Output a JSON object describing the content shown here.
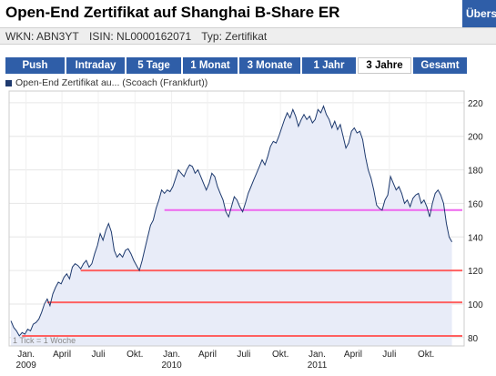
{
  "header": {
    "title": "Open-End Zertifikat auf Shanghai B-Share ER",
    "overview_button": "Übers"
  },
  "info": {
    "wkn": "WKN: ABN3YT",
    "isin": "ISIN: NL0000162071",
    "type": "Typ: Zertifikat"
  },
  "tabs": [
    {
      "label": "Push",
      "active": false
    },
    {
      "label": "Intraday",
      "active": false
    },
    {
      "label": "5 Tage",
      "active": false
    },
    {
      "label": "1 Monat",
      "active": false
    },
    {
      "label": "3 Monate",
      "active": false
    },
    {
      "label": "1 Jahr",
      "active": false
    },
    {
      "label": "3 Jahre",
      "active": true
    },
    {
      "label": "Gesamt",
      "active": false
    }
  ],
  "legend": {
    "label": "Open-End Zertifikat au... (Scoach (Frankfurt))",
    "color": "#1e3a6e"
  },
  "colors": {
    "accent": "#2f5ea8",
    "series_line": "#1e3a6e",
    "series_fill": "#e8ecf8",
    "support_line": "#ff6060",
    "resistance_line": "#ee66ee"
  },
  "chart_data": {
    "type": "area",
    "note": "1 Tick = 1 Woche",
    "ylim": [
      75,
      227
    ],
    "yticks": [
      80,
      100,
      120,
      140,
      160,
      180,
      200,
      220
    ],
    "xlim": [
      "2008-11-24",
      "2011-12-31"
    ],
    "x_tick_labels": [
      {
        "date": "2009-01-01",
        "label": "Jan.",
        "year": "2009"
      },
      {
        "date": "2009-04-01",
        "label": "April",
        "year": ""
      },
      {
        "date": "2009-07-01",
        "label": "Juli",
        "year": ""
      },
      {
        "date": "2009-10-01",
        "label": "Okt.",
        "year": ""
      },
      {
        "date": "2010-01-01",
        "label": "Jan.",
        "year": "2010"
      },
      {
        "date": "2010-04-01",
        "label": "April",
        "year": ""
      },
      {
        "date": "2010-07-01",
        "label": "Juli",
        "year": ""
      },
      {
        "date": "2010-10-01",
        "label": "Okt.",
        "year": ""
      },
      {
        "date": "2011-01-01",
        "label": "Jan.",
        "year": "2011"
      },
      {
        "date": "2011-04-01",
        "label": "April",
        "year": ""
      },
      {
        "date": "2011-07-01",
        "label": "Juli",
        "year": ""
      },
      {
        "date": "2011-10-01",
        "label": "Okt.",
        "year": ""
      }
    ],
    "series": [
      {
        "color": "#1e3a6e",
        "points": [
          [
            "2008-11-24",
            90
          ],
          [
            "2008-12-01",
            86
          ],
          [
            "2008-12-08",
            84
          ],
          [
            "2008-12-15",
            81
          ],
          [
            "2008-12-22",
            83
          ],
          [
            "2008-12-29",
            82
          ],
          [
            "2009-01-05",
            85
          ],
          [
            "2009-01-12",
            84
          ],
          [
            "2009-01-19",
            88
          ],
          [
            "2009-01-26",
            89
          ],
          [
            "2009-02-02",
            91
          ],
          [
            "2009-02-09",
            95
          ],
          [
            "2009-02-16",
            100
          ],
          [
            "2009-02-23",
            103
          ],
          [
            "2009-03-02",
            99
          ],
          [
            "2009-03-09",
            106
          ],
          [
            "2009-03-16",
            110
          ],
          [
            "2009-03-23",
            113
          ],
          [
            "2009-03-30",
            112
          ],
          [
            "2009-04-06",
            116
          ],
          [
            "2009-04-13",
            118
          ],
          [
            "2009-04-20",
            115
          ],
          [
            "2009-04-27",
            122
          ],
          [
            "2009-05-04",
            124
          ],
          [
            "2009-05-11",
            123
          ],
          [
            "2009-05-18",
            121
          ],
          [
            "2009-05-25",
            124
          ],
          [
            "2009-06-01",
            126
          ],
          [
            "2009-06-08",
            122
          ],
          [
            "2009-06-15",
            124
          ],
          [
            "2009-06-22",
            130
          ],
          [
            "2009-06-29",
            135
          ],
          [
            "2009-07-06",
            142
          ],
          [
            "2009-07-13",
            138
          ],
          [
            "2009-07-20",
            144
          ],
          [
            "2009-07-27",
            148
          ],
          [
            "2009-08-03",
            143
          ],
          [
            "2009-08-10",
            132
          ],
          [
            "2009-08-17",
            128
          ],
          [
            "2009-08-24",
            130
          ],
          [
            "2009-08-31",
            128
          ],
          [
            "2009-09-07",
            132
          ],
          [
            "2009-09-14",
            133
          ],
          [
            "2009-09-21",
            130
          ],
          [
            "2009-09-28",
            126
          ],
          [
            "2009-10-05",
            123
          ],
          [
            "2009-10-12",
            120
          ],
          [
            "2009-10-19",
            126
          ],
          [
            "2009-10-26",
            133
          ],
          [
            "2009-11-02",
            140
          ],
          [
            "2009-11-09",
            147
          ],
          [
            "2009-11-16",
            150
          ],
          [
            "2009-11-23",
            157
          ],
          [
            "2009-11-30",
            162
          ],
          [
            "2009-12-07",
            168
          ],
          [
            "2009-12-14",
            166
          ],
          [
            "2009-12-21",
            168
          ],
          [
            "2009-12-28",
            167
          ],
          [
            "2010-01-04",
            170
          ],
          [
            "2010-01-11",
            175
          ],
          [
            "2010-01-18",
            180
          ],
          [
            "2010-01-25",
            178
          ],
          [
            "2010-02-01",
            176
          ],
          [
            "2010-02-08",
            180
          ],
          [
            "2010-02-15",
            183
          ],
          [
            "2010-02-22",
            182
          ],
          [
            "2010-03-01",
            178
          ],
          [
            "2010-03-08",
            180
          ],
          [
            "2010-03-15",
            176
          ],
          [
            "2010-03-22",
            172
          ],
          [
            "2010-03-29",
            168
          ],
          [
            "2010-04-05",
            172
          ],
          [
            "2010-04-12",
            178
          ],
          [
            "2010-04-19",
            176
          ],
          [
            "2010-04-26",
            170
          ],
          [
            "2010-05-03",
            166
          ],
          [
            "2010-05-10",
            162
          ],
          [
            "2010-05-17",
            155
          ],
          [
            "2010-05-24",
            152
          ],
          [
            "2010-05-31",
            158
          ],
          [
            "2010-06-07",
            164
          ],
          [
            "2010-06-14",
            162
          ],
          [
            "2010-06-21",
            158
          ],
          [
            "2010-06-28",
            155
          ],
          [
            "2010-07-05",
            160
          ],
          [
            "2010-07-12",
            166
          ],
          [
            "2010-07-19",
            170
          ],
          [
            "2010-07-26",
            174
          ],
          [
            "2010-08-02",
            178
          ],
          [
            "2010-08-09",
            182
          ],
          [
            "2010-08-16",
            186
          ],
          [
            "2010-08-23",
            183
          ],
          [
            "2010-08-30",
            188
          ],
          [
            "2010-09-06",
            194
          ],
          [
            "2010-09-13",
            197
          ],
          [
            "2010-09-20",
            196
          ],
          [
            "2010-09-27",
            200
          ],
          [
            "2010-10-04",
            205
          ],
          [
            "2010-10-11",
            210
          ],
          [
            "2010-10-18",
            214
          ],
          [
            "2010-10-25",
            211
          ],
          [
            "2010-11-01",
            216
          ],
          [
            "2010-11-08",
            212
          ],
          [
            "2010-11-15",
            206
          ],
          [
            "2010-11-22",
            210
          ],
          [
            "2010-11-29",
            213
          ],
          [
            "2010-12-06",
            210
          ],
          [
            "2010-12-13",
            212
          ],
          [
            "2010-12-20",
            208
          ],
          [
            "2010-12-27",
            210
          ],
          [
            "2011-01-03",
            216
          ],
          [
            "2011-01-10",
            214
          ],
          [
            "2011-01-17",
            218
          ],
          [
            "2011-01-24",
            213
          ],
          [
            "2011-01-31",
            210
          ],
          [
            "2011-02-07",
            205
          ],
          [
            "2011-02-14",
            209
          ],
          [
            "2011-02-21",
            204
          ],
          [
            "2011-02-28",
            207
          ],
          [
            "2011-03-07",
            200
          ],
          [
            "2011-03-14",
            193
          ],
          [
            "2011-03-21",
            196
          ],
          [
            "2011-03-28",
            203
          ],
          [
            "2011-04-04",
            205
          ],
          [
            "2011-04-11",
            202
          ],
          [
            "2011-04-18",
            203
          ],
          [
            "2011-04-25",
            198
          ],
          [
            "2011-05-02",
            188
          ],
          [
            "2011-05-09",
            180
          ],
          [
            "2011-05-16",
            175
          ],
          [
            "2011-05-23",
            168
          ],
          [
            "2011-05-30",
            159
          ],
          [
            "2011-06-06",
            157
          ],
          [
            "2011-06-13",
            156
          ],
          [
            "2011-06-20",
            162
          ],
          [
            "2011-06-27",
            165
          ],
          [
            "2011-07-04",
            176
          ],
          [
            "2011-07-11",
            172
          ],
          [
            "2011-07-18",
            168
          ],
          [
            "2011-07-25",
            170
          ],
          [
            "2011-08-01",
            166
          ],
          [
            "2011-08-08",
            160
          ],
          [
            "2011-08-15",
            162
          ],
          [
            "2011-08-22",
            158
          ],
          [
            "2011-08-29",
            163
          ],
          [
            "2011-09-05",
            165
          ],
          [
            "2011-09-12",
            166
          ],
          [
            "2011-09-19",
            160
          ],
          [
            "2011-09-26",
            162
          ],
          [
            "2011-10-03",
            158
          ],
          [
            "2011-10-10",
            152
          ],
          [
            "2011-10-17",
            160
          ],
          [
            "2011-10-24",
            166
          ],
          [
            "2011-10-31",
            168
          ],
          [
            "2011-11-07",
            165
          ],
          [
            "2011-11-14",
            160
          ],
          [
            "2011-11-21",
            148
          ],
          [
            "2011-11-28",
            140
          ],
          [
            "2011-12-05",
            137
          ]
        ]
      }
    ],
    "horizontal_lines": [
      {
        "y": 81,
        "from": "2008-12-22",
        "color": "#ff6060"
      },
      {
        "y": 101,
        "from": "2009-02-23",
        "color": "#ff6060"
      },
      {
        "y": 120,
        "from": "2009-05-18",
        "color": "#ff6060"
      },
      {
        "y": 156,
        "from": "2009-12-14",
        "color": "#ee66ee"
      }
    ]
  }
}
